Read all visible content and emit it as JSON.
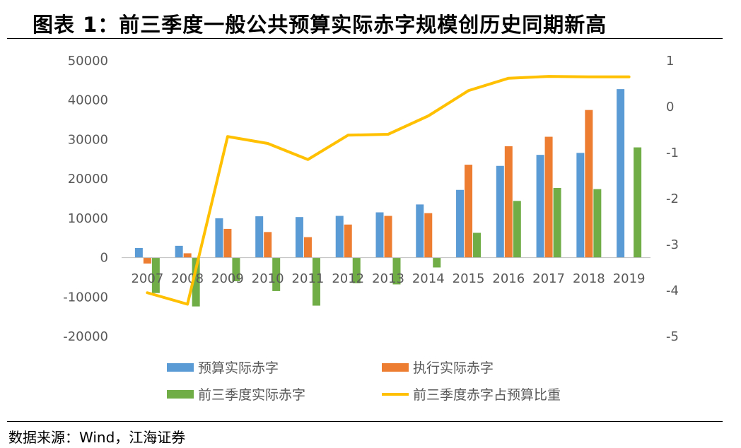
{
  "title": "图表 1：前三季度一般公共预算实际赤字规模创历史同期新高",
  "source": "数据来源：Wind，江海证券",
  "chart_data": {
    "type": "bar",
    "categories": [
      "2007",
      "2008",
      "2009",
      "2010",
      "2011",
      "2012",
      "2013",
      "2014",
      "2015",
      "2016",
      "2017",
      "2018",
      "2019"
    ],
    "series": [
      {
        "name": "预算实际赤字",
        "kind": "bar",
        "axis": "left",
        "color": "#5B9BD5",
        "values": [
          2450,
          3000,
          10000,
          10500,
          10300,
          10600,
          11500,
          13500,
          17200,
          23300,
          26100,
          26600,
          42800
        ]
      },
      {
        "name": "执行实际赤字",
        "kind": "bar",
        "axis": "left",
        "color": "#ED7D31",
        "values": [
          -1500,
          1100,
          7300,
          6500,
          5200,
          8400,
          10600,
          11300,
          23600,
          28300,
          30700,
          37500,
          null
        ]
      },
      {
        "name": "前三季度实际赤字",
        "kind": "bar",
        "axis": "left",
        "color": "#70AD47",
        "values": [
          -9000,
          -12400,
          -6000,
          -8500,
          -12200,
          -6500,
          -6800,
          -2500,
          6300,
          14400,
          17700,
          17400,
          28000
        ]
      },
      {
        "name": "前三季度赤字占预算比重",
        "kind": "line",
        "axis": "right",
        "color": "#FFC000",
        "values": [
          -4.05,
          -4.3,
          -0.65,
          -0.8,
          -1.15,
          -0.62,
          -0.6,
          -0.2,
          0.35,
          0.62,
          0.66,
          0.65,
          0.65
        ]
      }
    ],
    "y_left": {
      "min": -20000,
      "max": 50000,
      "step": 10000,
      "ticks": [
        "-20000",
        "-10000",
        "0",
        "10000",
        "20000",
        "30000",
        "40000",
        "50000"
      ]
    },
    "y_right": {
      "min": -5,
      "max": 1,
      "step": 1,
      "ticks": [
        "-5",
        "-4",
        "-3",
        "-2",
        "-1",
        "0",
        "1"
      ]
    },
    "legend": [
      {
        "name": "预算实际赤字",
        "symbol": "box",
        "color": "#5B9BD5"
      },
      {
        "name": "执行实际赤字",
        "symbol": "box",
        "color": "#ED7D31"
      },
      {
        "name": "前三季度实际赤字",
        "symbol": "box",
        "color": "#70AD47"
      },
      {
        "name": "前三季度赤字占预算比重",
        "symbol": "line",
        "color": "#FFC000"
      }
    ],
    "legend_position": "bottom",
    "grid": false
  }
}
